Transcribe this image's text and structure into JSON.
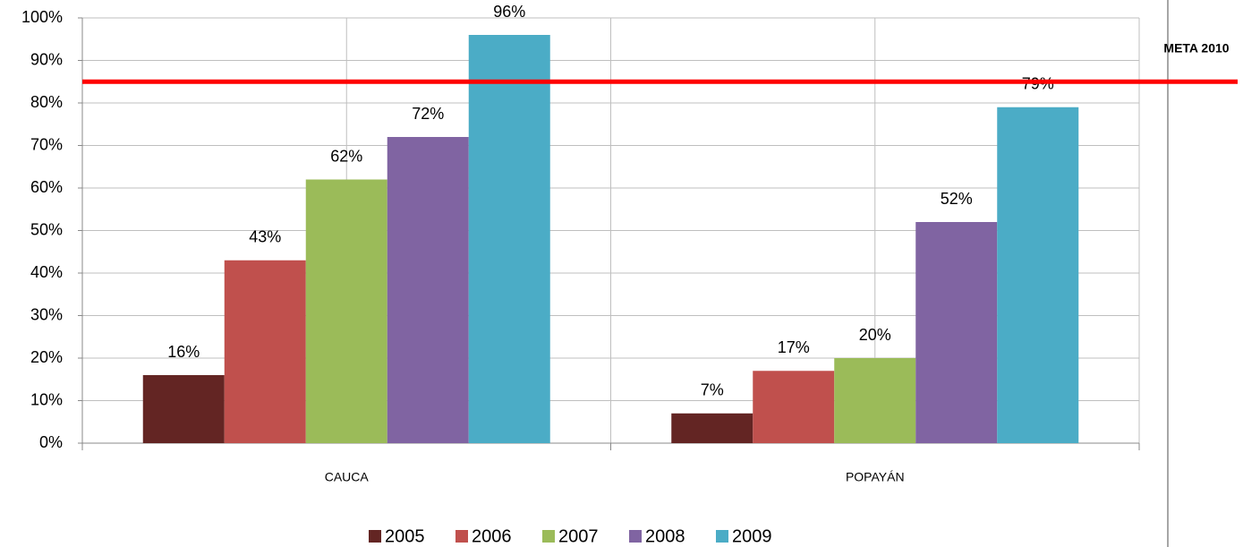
{
  "chart_data": {
    "type": "bar",
    "categories": [
      "CAUCA",
      "POPAYÁN"
    ],
    "series": [
      {
        "name": "2005",
        "color": "#632523",
        "values": [
          16,
          7
        ],
        "value_labels": [
          "16%",
          "7%"
        ]
      },
      {
        "name": "2006",
        "color": "#c0504d",
        "values": [
          43,
          17
        ],
        "value_labels": [
          "43%",
          "17%"
        ]
      },
      {
        "name": "2007",
        "color": "#9bbb59",
        "values": [
          62,
          20
        ],
        "value_labels": [
          "62%",
          "20%"
        ]
      },
      {
        "name": "2008",
        "color": "#8064a2",
        "values": [
          72,
          52
        ],
        "value_labels": [
          "72%",
          "52%"
        ]
      },
      {
        "name": "2009",
        "color": "#4bacc6",
        "values": [
          96,
          79
        ],
        "value_labels": [
          "96%",
          "79%"
        ]
      }
    ],
    "ylim": [
      0,
      100
    ],
    "yticks": [
      {
        "value": 0,
        "label": "0%"
      },
      {
        "value": 10,
        "label": "10%"
      },
      {
        "value": 20,
        "label": "20%"
      },
      {
        "value": 30,
        "label": "30%"
      },
      {
        "value": 40,
        "label": "40%"
      },
      {
        "value": 50,
        "label": "50%"
      },
      {
        "value": 60,
        "label": "60%"
      },
      {
        "value": 70,
        "label": "70%"
      },
      {
        "value": 80,
        "label": "80%"
      },
      {
        "value": 90,
        "label": "90%"
      },
      {
        "value": 100,
        "label": "100%"
      }
    ],
    "grid": true,
    "legend": "bottom",
    "reference_line": {
      "value": 85,
      "label": "META 2010",
      "color": "#ff0000"
    }
  }
}
